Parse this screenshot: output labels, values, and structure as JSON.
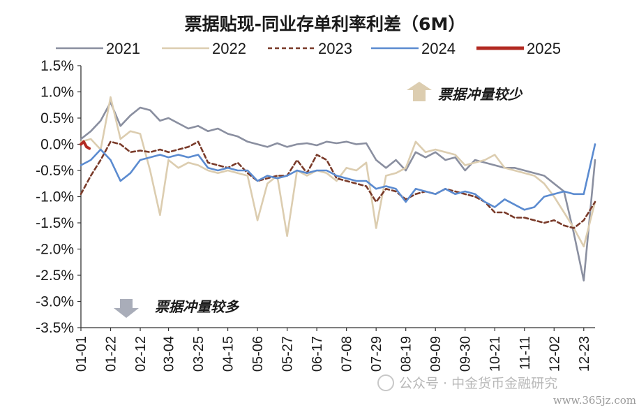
{
  "chart_data": {
    "type": "line",
    "title": "票据贴现-同业存单利率利差（6M）",
    "xlabel": "",
    "ylabel": "",
    "ylim": [
      -3.5,
      1.5
    ],
    "yticks": [
      1.5,
      1.0,
      0.5,
      0.0,
      -0.5,
      -1.0,
      -1.5,
      -2.0,
      -2.5,
      -3.0,
      -3.5
    ],
    "ytick_labels": [
      "1.5%",
      "1.0%",
      "0.5%",
      "0.0%",
      "-0.5%",
      "-1.0%",
      "-1.5%",
      "-2.0%",
      "-2.5%",
      "-3.0%",
      "-3.5%"
    ],
    "x_domain": [
      "01-01",
      "12-31"
    ],
    "xtick_labels": [
      "01-01",
      "01-22",
      "02-12",
      "03-04",
      "03-25",
      "04-15",
      "05-06",
      "05-27",
      "06-17",
      "07-08",
      "07-29",
      "08-19",
      "09-09",
      "09-30",
      "10-21",
      "11-11",
      "12-02",
      "12-23"
    ],
    "legend_position": "top",
    "series": [
      {
        "name": "2021",
        "color": "#8a8fa0",
        "style": "solid",
        "x": [
          "01-01",
          "01-08",
          "01-15",
          "01-22",
          "01-29",
          "02-05",
          "02-12",
          "02-19",
          "02-26",
          "03-04",
          "03-11",
          "03-18",
          "03-25",
          "04-01",
          "04-08",
          "04-15",
          "04-22",
          "04-29",
          "05-06",
          "05-13",
          "05-20",
          "05-27",
          "06-03",
          "06-10",
          "06-17",
          "06-24",
          "07-01",
          "07-08",
          "07-15",
          "07-22",
          "07-29",
          "08-05",
          "08-12",
          "08-19",
          "08-26",
          "09-02",
          "09-09",
          "09-16",
          "09-23",
          "09-30",
          "10-07",
          "10-14",
          "10-21",
          "10-28",
          "11-04",
          "11-11",
          "11-18",
          "11-25",
          "12-02",
          "12-09",
          "12-16",
          "12-23",
          "12-31"
        ],
        "y": [
          0.1,
          0.25,
          0.45,
          0.8,
          0.35,
          0.55,
          0.7,
          0.65,
          0.45,
          0.5,
          0.4,
          0.3,
          0.35,
          0.25,
          0.3,
          0.2,
          0.15,
          0.05,
          0.0,
          -0.05,
          0.02,
          -0.05,
          0.0,
          0.02,
          -0.02,
          0.05,
          0.02,
          0.05,
          0.0,
          0.02,
          -0.3,
          -0.45,
          -0.3,
          -0.5,
          -0.15,
          -0.25,
          -0.15,
          -0.3,
          -0.25,
          -0.5,
          -0.3,
          -0.35,
          -0.4,
          -0.45,
          -0.45,
          -0.5,
          -0.55,
          -0.6,
          -0.75,
          -0.9,
          -1.7,
          -2.6,
          -0.3
        ]
      },
      {
        "name": "2022",
        "color": "#dccdb0",
        "style": "solid",
        "x": [
          "01-01",
          "01-08",
          "01-15",
          "01-22",
          "01-29",
          "02-05",
          "02-12",
          "02-19",
          "02-26",
          "03-04",
          "03-11",
          "03-18",
          "03-25",
          "04-01",
          "04-08",
          "04-15",
          "04-22",
          "04-29",
          "05-06",
          "05-13",
          "05-20",
          "05-27",
          "06-03",
          "06-10",
          "06-17",
          "06-24",
          "07-01",
          "07-08",
          "07-15",
          "07-22",
          "07-29",
          "08-05",
          "08-12",
          "08-19",
          "08-26",
          "09-02",
          "09-09",
          "09-16",
          "09-23",
          "09-30",
          "10-07",
          "10-14",
          "10-21",
          "10-28",
          "11-04",
          "11-11",
          "11-18",
          "11-25",
          "12-02",
          "12-09",
          "12-16",
          "12-23",
          "12-31"
        ],
        "y": [
          0.05,
          0.1,
          -0.1,
          0.9,
          0.1,
          0.25,
          0.2,
          -0.5,
          -1.35,
          -0.3,
          -0.45,
          -0.35,
          -0.4,
          -0.5,
          -0.55,
          -0.5,
          -0.55,
          -0.6,
          -1.45,
          -0.75,
          -0.6,
          -1.75,
          -0.5,
          -0.6,
          -0.5,
          -0.55,
          -0.7,
          -0.45,
          -0.5,
          -0.35,
          -1.6,
          -0.6,
          -0.55,
          -0.45,
          0.05,
          -0.15,
          -0.1,
          -0.15,
          -0.2,
          -0.4,
          -0.35,
          -0.3,
          -0.2,
          -0.45,
          -0.5,
          -0.55,
          -0.6,
          -0.75,
          -1.0,
          -1.3,
          -1.6,
          -1.95,
          -1.1
        ]
      },
      {
        "name": "2023",
        "color": "#7a3b2a",
        "style": "dashed",
        "x": [
          "01-01",
          "01-08",
          "01-15",
          "01-22",
          "01-29",
          "02-05",
          "02-12",
          "02-19",
          "02-26",
          "03-04",
          "03-11",
          "03-18",
          "03-25",
          "04-01",
          "04-08",
          "04-15",
          "04-22",
          "04-29",
          "05-06",
          "05-13",
          "05-20",
          "05-27",
          "06-03",
          "06-10",
          "06-17",
          "06-24",
          "07-01",
          "07-08",
          "07-15",
          "07-22",
          "07-29",
          "08-05",
          "08-12",
          "08-19",
          "08-26",
          "09-02",
          "09-09",
          "09-16",
          "09-23",
          "09-30",
          "10-07",
          "10-14",
          "10-21",
          "10-28",
          "11-04",
          "11-11",
          "11-18",
          "11-25",
          "12-02",
          "12-09",
          "12-16",
          "12-23",
          "12-31"
        ],
        "y": [
          -0.95,
          -0.6,
          -0.3,
          0.05,
          0.0,
          -0.15,
          -0.12,
          -0.15,
          -0.1,
          -0.15,
          -0.1,
          -0.05,
          0.05,
          -0.35,
          -0.4,
          -0.45,
          -0.35,
          -0.55,
          -0.7,
          -0.65,
          -0.6,
          -0.6,
          -0.3,
          -0.55,
          -0.2,
          -0.3,
          -0.65,
          -0.7,
          -0.75,
          -0.8,
          -1.1,
          -0.85,
          -0.9,
          -1.05,
          -0.95,
          -0.9,
          -0.95,
          -0.85,
          -0.9,
          -0.95,
          -1.0,
          -1.1,
          -1.3,
          -1.3,
          -1.4,
          -1.4,
          -1.45,
          -1.5,
          -1.45,
          -1.55,
          -1.6,
          -1.45,
          -1.1
        ]
      },
      {
        "name": "2024",
        "color": "#5b8bd0",
        "style": "solid",
        "x": [
          "01-01",
          "01-08",
          "01-15",
          "01-22",
          "01-29",
          "02-05",
          "02-12",
          "02-19",
          "02-26",
          "03-04",
          "03-11",
          "03-18",
          "03-25",
          "04-01",
          "04-08",
          "04-15",
          "04-22",
          "04-29",
          "05-06",
          "05-13",
          "05-20",
          "05-27",
          "06-03",
          "06-10",
          "06-17",
          "06-24",
          "07-01",
          "07-08",
          "07-15",
          "07-22",
          "07-29",
          "08-05",
          "08-12",
          "08-19",
          "08-26",
          "09-02",
          "09-09",
          "09-16",
          "09-23",
          "09-30",
          "10-07",
          "10-14",
          "10-21",
          "10-28",
          "11-04",
          "11-11",
          "11-18",
          "11-25",
          "12-02",
          "12-09",
          "12-16",
          "12-23",
          "12-31"
        ],
        "y": [
          -0.4,
          -0.3,
          -0.1,
          -0.3,
          -0.7,
          -0.55,
          -0.3,
          -0.25,
          -0.2,
          -0.25,
          -0.2,
          -0.25,
          -0.2,
          -0.45,
          -0.5,
          -0.45,
          -0.5,
          -0.5,
          -0.7,
          -0.6,
          -0.65,
          -0.6,
          -0.5,
          -0.55,
          -0.5,
          -0.5,
          -0.6,
          -0.65,
          -0.7,
          -0.7,
          -0.85,
          -0.8,
          -0.85,
          -1.1,
          -0.85,
          -0.9,
          -0.95,
          -0.85,
          -0.95,
          -0.9,
          -0.95,
          -1.1,
          -1.2,
          -1.05,
          -1.15,
          -1.25,
          -1.2,
          -1.0,
          -0.95,
          -0.9,
          -0.95,
          -0.95,
          0.0
        ]
      },
      {
        "name": "2025",
        "color": "#b22a22",
        "style": "solid",
        "x": [
          "01-01",
          "01-03",
          "01-05",
          "01-07"
        ],
        "y": [
          0.0,
          0.05,
          -0.05,
          -0.08
        ]
      }
    ]
  },
  "annotations": {
    "up_text": "票据冲量较少",
    "down_text": "票据冲量较多"
  },
  "watermark": {
    "text": "公众号 · 中金货币金融研究",
    "site": "www.365jz.com"
  }
}
